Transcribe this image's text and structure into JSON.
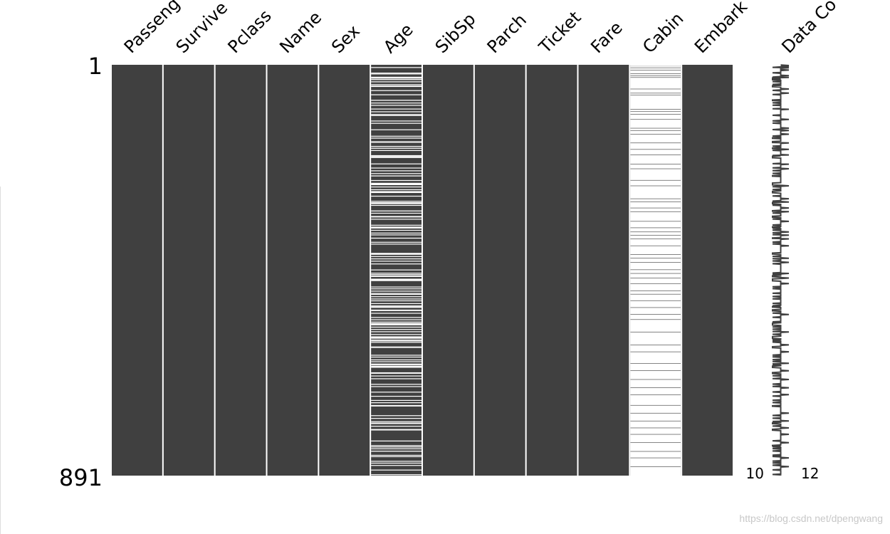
{
  "chart_data": {
    "type": "missing-matrix",
    "columns": [
      {
        "name": "Passeng",
        "missing_ranges": []
      },
      {
        "name": "Survive",
        "missing_ranges": []
      },
      {
        "name": "Pclass",
        "missing_ranges": []
      },
      {
        "name": "Name",
        "missing_ranges": []
      },
      {
        "name": "Sex",
        "missing_ranges": []
      },
      {
        "name": "Age",
        "missing_ranges": [
          [
            6,
            6
          ],
          [
            18,
            18
          ],
          [
            20,
            20
          ],
          [
            27,
            27
          ],
          [
            29,
            30
          ],
          [
            32,
            33
          ],
          [
            37,
            37
          ],
          [
            43,
            43
          ],
          [
            46,
            48
          ],
          [
            56,
            56
          ],
          [
            65,
            66
          ],
          [
            77,
            78
          ],
          [
            83,
            83
          ],
          [
            88,
            88
          ],
          [
            96,
            96
          ],
          [
            102,
            102
          ],
          [
            108,
            108
          ],
          [
            110,
            110
          ],
          [
            122,
            122
          ],
          [
            127,
            127
          ],
          [
            141,
            141
          ],
          [
            155,
            155
          ],
          [
            159,
            160
          ],
          [
            167,
            169
          ],
          [
            177,
            177
          ],
          [
            181,
            182
          ],
          [
            186,
            186
          ],
          [
            197,
            197
          ],
          [
            199,
            202
          ],
          [
            215,
            215
          ],
          [
            224,
            224
          ],
          [
            230,
            230
          ],
          [
            236,
            236
          ],
          [
            241,
            242
          ],
          [
            251,
            251
          ],
          [
            257,
            261
          ],
          [
            265,
            265
          ],
          [
            271,
            271
          ],
          [
            275,
            278
          ],
          [
            285,
            285
          ],
          [
            296,
            296
          ],
          [
            299,
            302
          ],
          [
            305,
            305
          ],
          [
            317,
            318
          ],
          [
            322,
            322
          ],
          [
            329,
            331
          ],
          [
            335,
            335
          ],
          [
            348,
            348
          ],
          [
            352,
            355
          ],
          [
            359,
            359
          ],
          [
            365,
            365
          ],
          [
            369,
            369
          ],
          [
            376,
            377
          ],
          [
            385,
            385
          ],
          [
            389,
            389
          ],
          [
            409,
            412
          ],
          [
            416,
            416
          ],
          [
            421,
            421
          ],
          [
            426,
            426
          ],
          [
            432,
            432
          ],
          [
            445,
            445
          ],
          [
            452,
            452
          ],
          [
            455,
            455
          ],
          [
            458,
            460
          ],
          [
            465,
            469
          ],
          [
            482,
            482
          ],
          [
            486,
            486
          ],
          [
            491,
            491
          ],
          [
            496,
            496
          ],
          [
            498,
            498
          ],
          [
            503,
            503
          ],
          [
            508,
            508
          ],
          [
            512,
            512
          ],
          [
            518,
            518
          ],
          [
            523,
            523
          ],
          [
            525,
            527
          ],
          [
            532,
            534
          ],
          [
            539,
            539
          ],
          [
            548,
            548
          ],
          [
            553,
            553
          ],
          [
            558,
            558
          ],
          [
            561,
            565
          ],
          [
            569,
            569
          ],
          [
            574,
            574
          ],
          [
            579,
            579
          ],
          [
            585,
            585
          ],
          [
            590,
            594
          ],
          [
            597,
            597
          ],
          [
            599,
            599
          ],
          [
            602,
            602
          ],
          [
            612,
            614
          ],
          [
            630,
            630
          ],
          [
            634,
            634
          ],
          [
            640,
            640
          ],
          [
            644,
            644
          ],
          [
            649,
            649
          ],
          [
            651,
            651
          ],
          [
            654,
            657
          ],
          [
            668,
            670
          ],
          [
            675,
            675
          ],
          [
            681,
            681
          ],
          [
            693,
            693
          ],
          [
            698,
            698
          ],
          [
            710,
            710
          ],
          [
            719,
            719
          ],
          [
            728,
            728
          ],
          [
            733,
            733
          ],
          [
            739,
            741
          ],
          [
            761,
            761
          ],
          [
            767,
            767
          ],
          [
            774,
            774
          ],
          [
            777,
            779
          ],
          [
            784,
            784
          ],
          [
            791,
            793
          ],
          [
            816,
            816
          ],
          [
            826,
            827
          ],
          [
            829,
            829
          ],
          [
            833,
            833
          ],
          [
            838,
            839
          ],
          [
            847,
            847
          ],
          [
            850,
            850
          ],
          [
            860,
            860
          ],
          [
            864,
            864
          ],
          [
            869,
            869
          ],
          [
            879,
            879
          ],
          [
            889,
            889
          ]
        ]
      },
      {
        "name": "SibSp",
        "missing_ranges": []
      },
      {
        "name": "Parch",
        "missing_ranges": []
      },
      {
        "name": "Ticket",
        "missing_ranges": []
      },
      {
        "name": "Fare",
        "missing_ranges": []
      },
      {
        "name": "Cabin",
        "missing_ranges": [
          [
            1,
            1
          ],
          [
            3,
            3
          ],
          [
            5,
            6
          ],
          [
            8,
            11
          ],
          [
            13,
            19
          ],
          [
            21,
            23
          ],
          [
            25,
            27
          ],
          [
            29,
            52
          ],
          [
            54,
            61
          ],
          [
            63,
            65
          ],
          [
            67,
            96
          ],
          [
            98,
            101
          ],
          [
            103,
            107
          ],
          [
            109,
            118
          ],
          [
            120,
            137
          ],
          [
            139,
            142
          ],
          [
            144,
            150
          ],
          [
            152,
            169
          ],
          [
            171,
            183
          ],
          [
            185,
            195
          ],
          [
            197,
            215
          ],
          [
            217,
            225
          ],
          [
            227,
            250
          ],
          [
            252,
            262
          ],
          [
            264,
            290
          ],
          [
            292,
            297
          ],
          [
            299,
            310
          ],
          [
            312,
            318
          ],
          [
            320,
            339
          ],
          [
            341,
            353
          ],
          [
            355,
            362
          ],
          [
            364,
            369
          ],
          [
            371,
            377
          ],
          [
            379,
            392
          ],
          [
            394,
            411
          ],
          [
            413,
            419
          ],
          [
            421,
            428
          ],
          [
            430,
            444
          ],
          [
            446,
            452
          ],
          [
            454,
            462
          ],
          [
            464,
            474
          ],
          [
            476,
            490
          ],
          [
            492,
            497
          ],
          [
            499,
            511
          ],
          [
            513,
            526
          ],
          [
            528,
            541
          ],
          [
            543,
            552
          ],
          [
            554,
            579
          ],
          [
            581,
            607
          ],
          [
            609,
            622
          ],
          [
            624,
            647
          ],
          [
            649,
            663
          ],
          [
            665,
            682
          ],
          [
            684,
            700
          ],
          [
            702,
            715
          ],
          [
            717,
            738
          ],
          [
            740,
            755
          ],
          [
            757,
            772
          ],
          [
            774,
            787
          ],
          [
            789,
            801
          ],
          [
            803,
            819
          ],
          [
            821,
            838
          ],
          [
            840,
            852
          ],
          [
            854,
            871
          ],
          [
            873,
            891
          ]
        ]
      },
      {
        "name": "Embark",
        "missing_ranges": []
      }
    ],
    "sparkline_name": "Data Co",
    "rows": [
      1,
      891
    ],
    "sparkline_range": [
      10,
      12
    ],
    "color": "#404040",
    "watermark": "https://blog.csdn.net/dpengwang"
  }
}
